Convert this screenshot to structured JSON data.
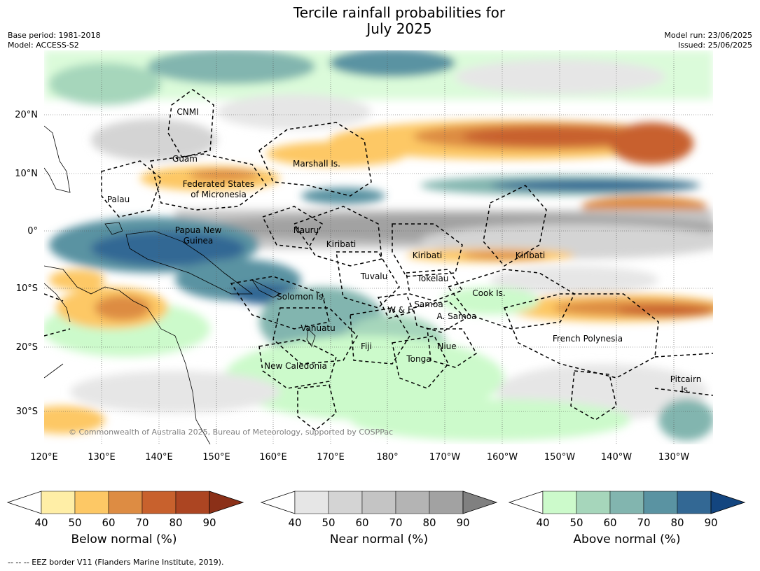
{
  "title": {
    "line1": "Tercile rainfall probabilities for",
    "line2": "July 2025"
  },
  "meta": {
    "base_period": "Base period: 1981-2018",
    "model": "Model: ACCESS-S2",
    "model_run": "Model run: 23/06/2025",
    "issued": "Issued: 25/06/2025"
  },
  "map": {
    "lon_labels": [
      "120°E",
      "130°E",
      "140°E",
      "150°E",
      "160°E",
      "170°E",
      "180°",
      "170°W",
      "160°W",
      "150°W",
      "140°W",
      "130°W"
    ],
    "lat_labels": [
      "20°N",
      "10°N",
      "0°",
      "10°S",
      "20°S",
      "30°S"
    ],
    "places": [
      "CNMI",
      "Guam",
      "Marshall Is.",
      "Federated States",
      "of Micronesia",
      "Palau",
      "Papua New",
      "Guinea",
      "Nauru",
      "Kiribati",
      "Kiribati",
      "Kiribati",
      "Tuvalu",
      "Tokelau",
      "Cook Is.",
      "Solomon Is.",
      "W & F",
      "Samoa",
      "A. Samoa",
      "Vanuatu",
      "Fiji",
      "Niue",
      "French Polynesia",
      "Tonga",
      "New Caledonia",
      "Pitcairn",
      "Is."
    ],
    "copyright": "© Commonwealth of Australia 2025, Bureau of Meteorology, supported by COSPPac"
  },
  "colorbars": [
    {
      "title": "Below normal (%)",
      "ticks": [
        "40",
        "50",
        "60",
        "70",
        "80",
        "90"
      ],
      "colors": [
        "#ffeea6",
        "#fdc865",
        "#dd8c43",
        "#c8612d",
        "#ac4522",
        "#8b3018"
      ]
    },
    {
      "title": "Near normal (%)",
      "ticks": [
        "40",
        "50",
        "60",
        "70",
        "80",
        "90"
      ],
      "colors": [
        "#e6e6e6",
        "#d4d4d4",
        "#c4c4c4",
        "#b4b4b4",
        "#a2a2a2",
        "#808080"
      ]
    },
    {
      "title": "Above normal (%)",
      "ticks": [
        "40",
        "50",
        "60",
        "70",
        "80",
        "90"
      ],
      "colors": [
        "#ccfacb",
        "#a6d6bb",
        "#82b5af",
        "#5a93a2",
        "#336894",
        "#13457f"
      ]
    }
  ],
  "footer": "--  --  -- EEZ border V11 (Flanders Marine Institute, 2019)."
}
